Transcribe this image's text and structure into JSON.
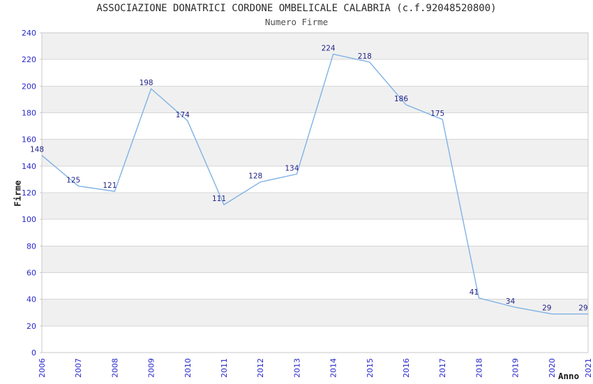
{
  "chart_data": {
    "type": "line",
    "title": "ASSOCIAZIONE DONATRICI CORDONE OMBELICALE CALABRIA (c.f.92048520800)",
    "subtitle": "Numero Firme",
    "xlabel": "Anno",
    "ylabel": "Firme",
    "categories": [
      "2006",
      "2007",
      "2008",
      "2009",
      "2010",
      "2011",
      "2012",
      "2013",
      "2014",
      "2015",
      "2016",
      "2017",
      "2018",
      "2019",
      "2020",
      "2021"
    ],
    "values": [
      148,
      125,
      121,
      198,
      174,
      111,
      128,
      134,
      224,
      218,
      186,
      175,
      41,
      34,
      29,
      29
    ],
    "ylim": [
      0,
      240
    ],
    "ytick_step": 20,
    "grid": true,
    "legend": false,
    "x_labels_rotated": true,
    "banded_background": true,
    "colors": {
      "line": "#7fb2e5",
      "value_label": "#222288",
      "tick_label": "#2727cc",
      "band": "#f0f0f0",
      "gridline": "#d6d6d6",
      "border": "#c9c9c9",
      "title": "#2b2b2b",
      "subtitle": "#4d4d4d",
      "axis_title": "#1a1a1a"
    }
  }
}
